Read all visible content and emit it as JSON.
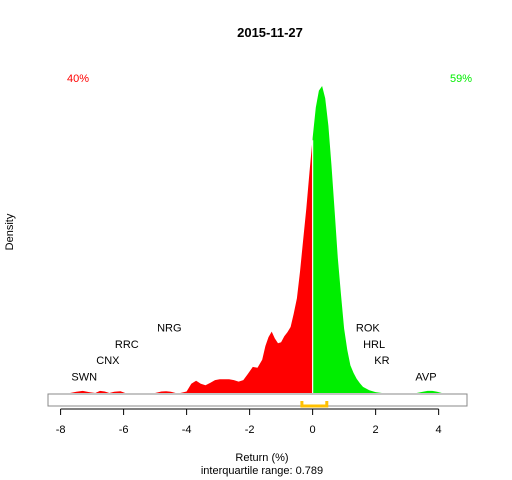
{
  "chart_data": {
    "type": "area",
    "title": "2015-11-27",
    "xlabel": "Return (%)",
    "subtitle": "interquartile range: 0.789",
    "ylabel": "Density",
    "xlim": [
      -8.4,
      4.9
    ],
    "ylim": [
      0,
      1
    ],
    "x_ticks": [
      -8,
      -6,
      -4,
      -2,
      0,
      2,
      4
    ],
    "split_at": 0,
    "negative": {
      "share_label": "40%",
      "color": "#ff0000"
    },
    "positive": {
      "share_label": "59%",
      "color": "#00ee00"
    },
    "iqr": {
      "low": -0.34,
      "high": 0.45,
      "color": "#ffc000"
    },
    "curve_x": [
      -7.7,
      -7.5,
      -7.3,
      -7.1,
      -6.9,
      -6.75,
      -6.6,
      -6.45,
      -6.3,
      -6.1,
      -5.95,
      -5.8,
      -5.65,
      -5.5,
      -5.0,
      -4.8,
      -4.65,
      -4.5,
      -4.35,
      -4.2,
      -4.0,
      -3.85,
      -3.7,
      -3.55,
      -3.4,
      -3.25,
      -3.1,
      -2.95,
      -2.8,
      -2.65,
      -2.5,
      -2.35,
      -2.2,
      -2.05,
      -1.9,
      -1.75,
      -1.6,
      -1.5,
      -1.4,
      -1.3,
      -1.2,
      -1.1,
      -1.0,
      -0.9,
      -0.8,
      -0.7,
      -0.6,
      -0.5,
      -0.4,
      -0.3,
      -0.2,
      -0.1,
      0.0,
      0.1,
      0.2,
      0.3,
      0.4,
      0.5,
      0.6,
      0.7,
      0.8,
      0.9,
      1.0,
      1.1,
      1.2,
      1.3,
      1.4,
      1.5,
      1.6,
      1.8,
      2.0,
      2.2,
      2.5,
      2.8,
      3.1,
      3.3,
      3.5,
      3.65,
      3.8,
      3.95,
      4.1,
      4.3
    ],
    "curve_y": [
      0.0,
      0.004,
      0.007,
      0.003,
      0.0,
      0.007,
      0.005,
      0.0,
      0.004,
      0.006,
      0.0,
      0.0,
      0.0,
      0.0,
      0.0,
      0.005,
      0.006,
      0.004,
      0.0,
      0.0,
      0.005,
      0.03,
      0.04,
      0.03,
      0.025,
      0.033,
      0.042,
      0.045,
      0.045,
      0.045,
      0.042,
      0.037,
      0.042,
      0.063,
      0.085,
      0.082,
      0.108,
      0.153,
      0.182,
      0.2,
      0.178,
      0.162,
      0.165,
      0.185,
      0.198,
      0.215,
      0.258,
      0.308,
      0.395,
      0.5,
      0.6,
      0.72,
      0.83,
      0.93,
      0.985,
      1.0,
      0.96,
      0.87,
      0.74,
      0.59,
      0.44,
      0.32,
      0.21,
      0.14,
      0.09,
      0.065,
      0.046,
      0.032,
      0.02,
      0.009,
      0.003,
      0.0,
      0.0,
      0.0,
      0.0,
      0.0,
      0.004,
      0.007,
      0.007,
      0.004,
      0.0,
      0.0
    ],
    "annotations": [
      {
        "text": "SWN",
        "x": -7.25,
        "y": 0.041
      },
      {
        "text": "CNX",
        "x": -6.5,
        "y": 0.094
      },
      {
        "text": "RRC",
        "x": -5.9,
        "y": 0.147
      },
      {
        "text": "NRG",
        "x": -4.55,
        "y": 0.2
      },
      {
        "text": "ROK",
        "x": 1.75,
        "y": 0.2
      },
      {
        "text": "HRL",
        "x": 1.95,
        "y": 0.147
      },
      {
        "text": "KR",
        "x": 2.2,
        "y": 0.094
      },
      {
        "text": "AVP",
        "x": 3.6,
        "y": 0.041
      }
    ]
  }
}
